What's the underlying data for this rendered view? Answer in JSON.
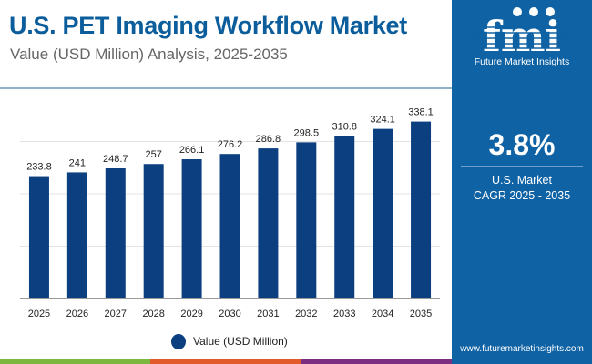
{
  "header": {
    "title": "U.S. PET Imaging Workflow Market",
    "subtitle": "Value (USD Million) Analysis, 2025-2035"
  },
  "sidebar": {
    "logo_text": "fmi",
    "logo_sub": "Future Market Insights",
    "cagr_value": "3.8%",
    "cagr_label1": "U.S. Market",
    "cagr_label2": "CAGR 2025 - 2035",
    "url": "www.futuremarketinsights.com"
  },
  "colors": {
    "bar": "#0c3f80",
    "brand": "#0f62a4",
    "stripes": [
      "#7cb73f",
      "#e2592a",
      "#7b2e82",
      "#0f62a4"
    ]
  },
  "chart_data": {
    "type": "bar",
    "categories": [
      "2025",
      "2026",
      "2027",
      "2028",
      "2029",
      "2030",
      "2031",
      "2032",
      "2033",
      "2034",
      "2035"
    ],
    "values": [
      233.8,
      241,
      248.7,
      257,
      266.1,
      276.2,
      286.8,
      298.5,
      310.8,
      324.1,
      338.1
    ],
    "labels": [
      "233.8",
      "241",
      "248.7",
      "257",
      "266.1",
      "276.2",
      "286.8",
      "298.5",
      "310.8",
      "324.1",
      "338.1"
    ],
    "series_name": "Value (USD Million)",
    "ylim": [
      0,
      400
    ],
    "grid": true,
    "legend": "bottom"
  }
}
